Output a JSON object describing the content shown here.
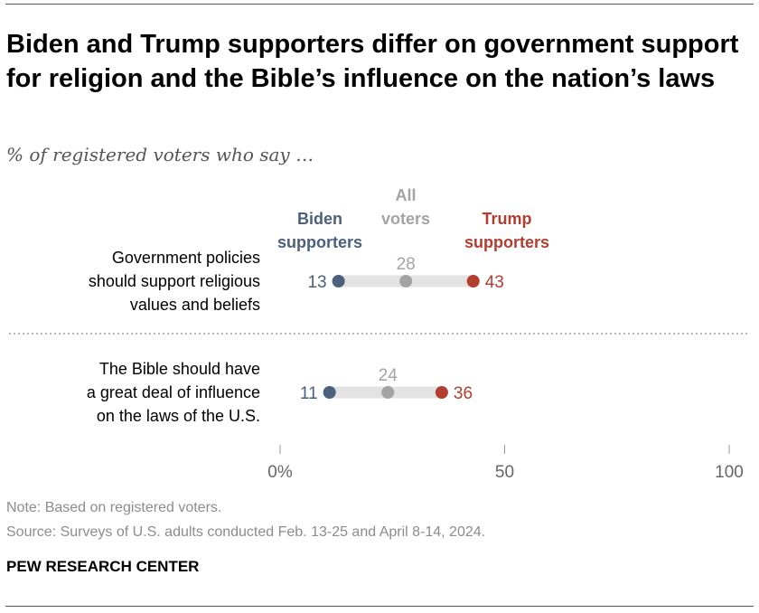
{
  "title": "Biden and Trump supporters differ on government support for religion and the Bible’s influence on the nation’s laws",
  "subtitle": "% of registered voters who say …",
  "legend": {
    "biden": [
      "Biden",
      "supporters"
    ],
    "all": [
      "All",
      "voters"
    ],
    "trump": [
      "Trump",
      "supporters"
    ]
  },
  "colors": {
    "biden": "#4a607c",
    "all": "#a3a3a3",
    "trump": "#b13e2f",
    "track": "#e3e3e3",
    "axis": "#999999"
  },
  "chart_data": {
    "type": "dot",
    "x_range": [
      0,
      100
    ],
    "ticks": [
      0,
      50,
      100
    ],
    "tick_labels": [
      "0%",
      "50",
      "100"
    ],
    "series": [
      {
        "key": "biden",
        "name": "Biden supporters"
      },
      {
        "key": "all",
        "name": "All voters"
      },
      {
        "key": "trump",
        "name": "Trump supporters"
      }
    ],
    "rows": [
      {
        "label_lines": [
          "Government policies",
          "should support religious",
          "values and beliefs"
        ],
        "values": {
          "biden": 13,
          "all": 28,
          "trump": 43
        }
      },
      {
        "label_lines": [
          "The Bible should have",
          "a great deal of influence",
          "on the laws of the U.S."
        ],
        "values": {
          "biden": 11,
          "all": 24,
          "trump": 36
        }
      }
    ]
  },
  "note": "Note: Based on registered voters.",
  "source": "Source: Surveys of U.S. adults conducted Feb. 13-25 and April 8-14, 2024.",
  "brand": "PEW RESEARCH CENTER"
}
